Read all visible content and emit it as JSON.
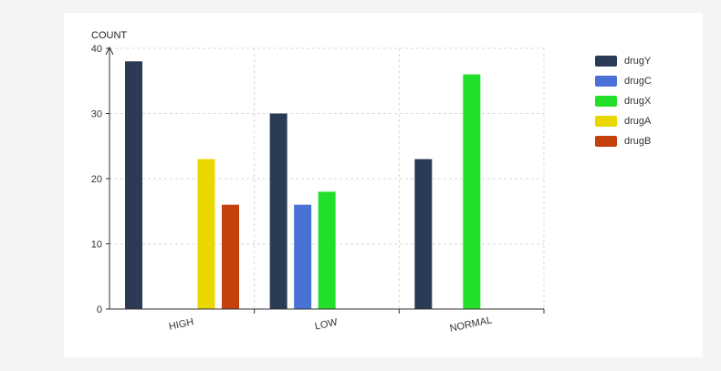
{
  "chart_data": {
    "type": "bar",
    "ylabel": "COUNT",
    "xlabel": "",
    "categories": [
      "HIGH",
      "LOW",
      "NORMAL"
    ],
    "ylim": [
      0,
      40
    ],
    "yticks": [
      0,
      10,
      20,
      30,
      40
    ],
    "grid": true,
    "legend_position": "right",
    "series": [
      {
        "name": "drugY",
        "color": "#2b3a55",
        "values": [
          38,
          30,
          23
        ]
      },
      {
        "name": "drugC",
        "color": "#4a72d6",
        "values": [
          0,
          16,
          0
        ]
      },
      {
        "name": "drugX",
        "color": "#22e02a",
        "values": [
          0,
          18,
          36
        ]
      },
      {
        "name": "drugA",
        "color": "#e8d800",
        "values": [
          23,
          0,
          0
        ]
      },
      {
        "name": "drugB",
        "color": "#c4400d",
        "values": [
          16,
          0,
          0
        ]
      }
    ]
  }
}
